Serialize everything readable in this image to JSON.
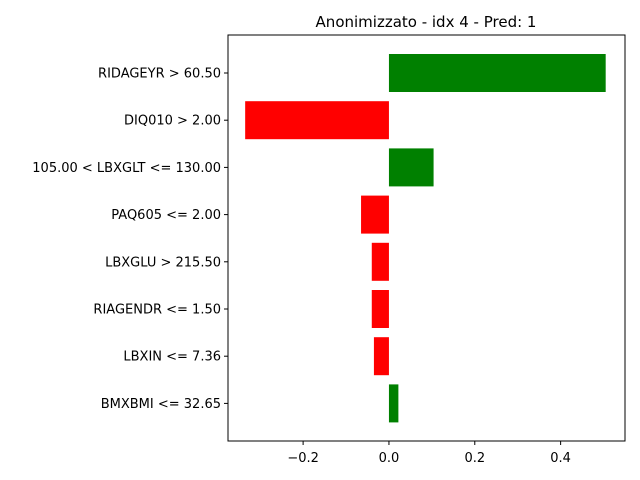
{
  "chart_data": {
    "type": "bar",
    "orientation": "horizontal",
    "title": "Anonimizzato - idx 4 - Pred: 1",
    "xlabel": "",
    "ylabel": "",
    "categories": [
      "RIDAGEYR > 60.50",
      "DIQ010 > 2.00",
      "105.00 < LBXGLT <= 130.00",
      "PAQ605 <= 2.00",
      "LBXGLU > 215.50",
      "RIAGENDR <= 1.50",
      "LBXIN <= 7.36",
      "BMXBMI <= 32.65"
    ],
    "values": [
      0.505,
      -0.335,
      0.104,
      -0.065,
      -0.04,
      -0.04,
      -0.035,
      0.022
    ],
    "xlim": [
      -0.375,
      0.55
    ],
    "xticks": [
      -0.2,
      0.0,
      0.2,
      0.4
    ],
    "xtick_labels": [
      "−0.2",
      "0.0",
      "0.2",
      "0.4"
    ],
    "colors": {
      "positive": "#008000",
      "negative": "#ff0000"
    },
    "grid": false,
    "legend": "none"
  }
}
